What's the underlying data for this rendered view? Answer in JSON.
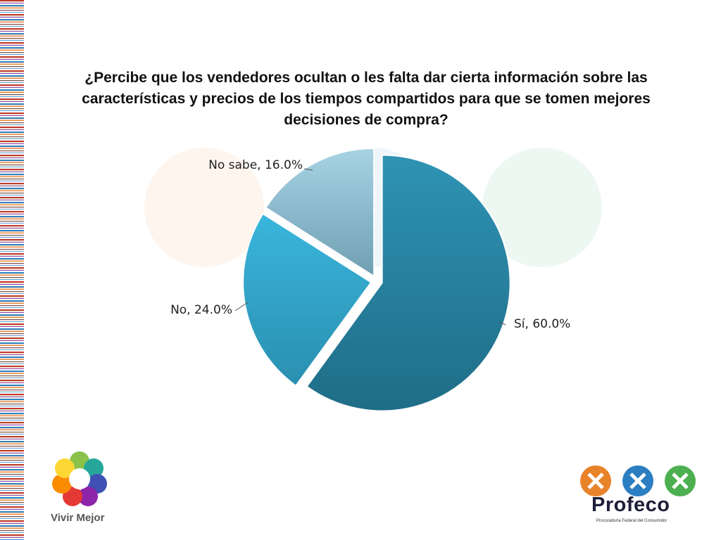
{
  "title": "¿Percibe que los vendedores ocultan o les falta dar cierta información sobre las características y precios de los tiempos compartidos para que se tomen mejores decisiones de compra?",
  "chart_data": {
    "type": "pie",
    "title": "¿Percibe que los vendedores ocultan o les falta dar cierta información sobre las características y precios de los tiempos compartidos para que se tomen mejores decisiones de compra?",
    "slices": [
      {
        "label": "Sí",
        "value": 60.0,
        "text": "Sí, 60.0%",
        "color": "#2a84a1"
      },
      {
        "label": "No",
        "value": 24.0,
        "text": "No, 24.0%",
        "color": "#34a9cf"
      },
      {
        "label": "No sabe",
        "value": 16.0,
        "text": "No sabe, 16.0%",
        "color": "#93c4d6"
      }
    ],
    "legend": "none",
    "exploded": true
  },
  "logos": {
    "left_text": "Vivir Mejor",
    "right_name": "Profeco",
    "right_subtitle": "Procuraduría Federal del Consumidor"
  }
}
